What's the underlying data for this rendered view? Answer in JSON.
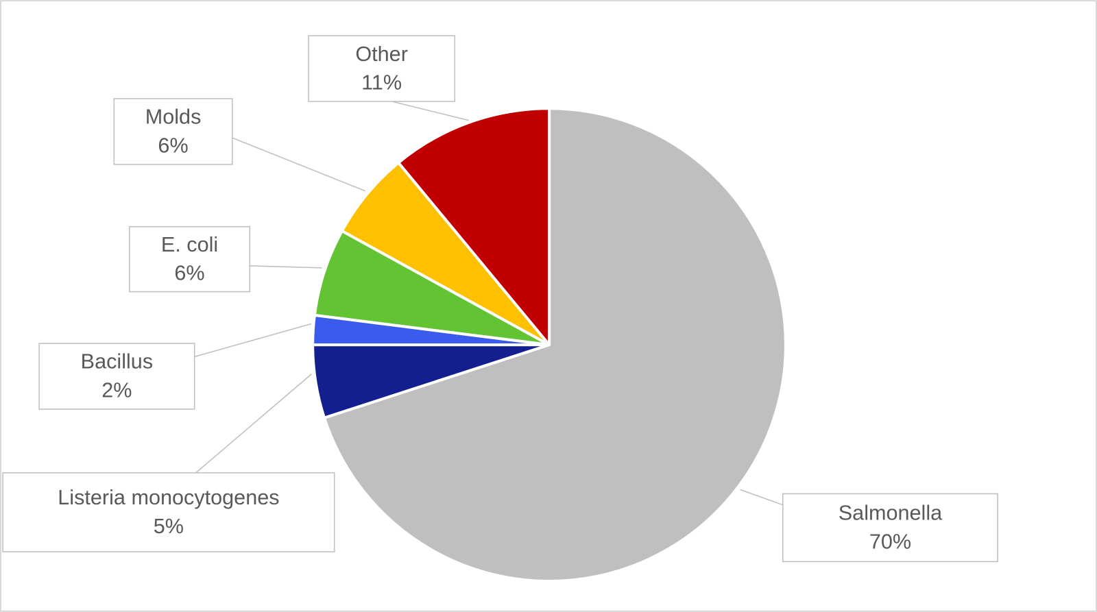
{
  "chart_data": {
    "type": "pie",
    "categories": [
      "Salmonella",
      "Listeria monocytogenes",
      "Bacillus",
      "E. coli",
      "Molds",
      "Other"
    ],
    "values": [
      70,
      5,
      2,
      6,
      6,
      11
    ],
    "value_labels": [
      "70%",
      "5%",
      "2%",
      "6%",
      "6%",
      "11%"
    ],
    "colors": [
      "#bfbfbf",
      "#131f8f",
      "#3b5bec",
      "#62c433",
      "#ffc000",
      "#c00000"
    ]
  }
}
